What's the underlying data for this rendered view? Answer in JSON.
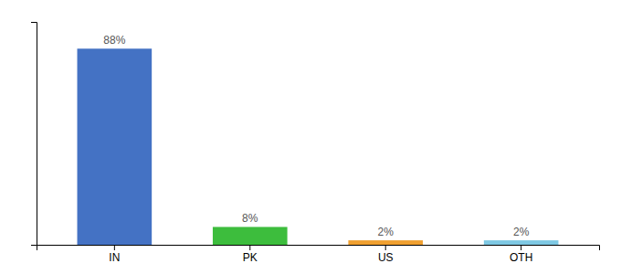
{
  "chart_data": {
    "type": "bar",
    "categories": [
      "IN",
      "PK",
      "US",
      "OTH"
    ],
    "values": [
      88,
      8,
      2,
      2
    ],
    "value_labels": [
      "88%",
      "8%",
      "2%",
      "2%"
    ],
    "data_labels": true,
    "colors": [
      "#4472C4",
      "#3DBD3D",
      "#F0A030",
      "#7EC8E3"
    ],
    "ylim": [
      0,
      100
    ],
    "grid": false,
    "tick_labels": "x"
  }
}
